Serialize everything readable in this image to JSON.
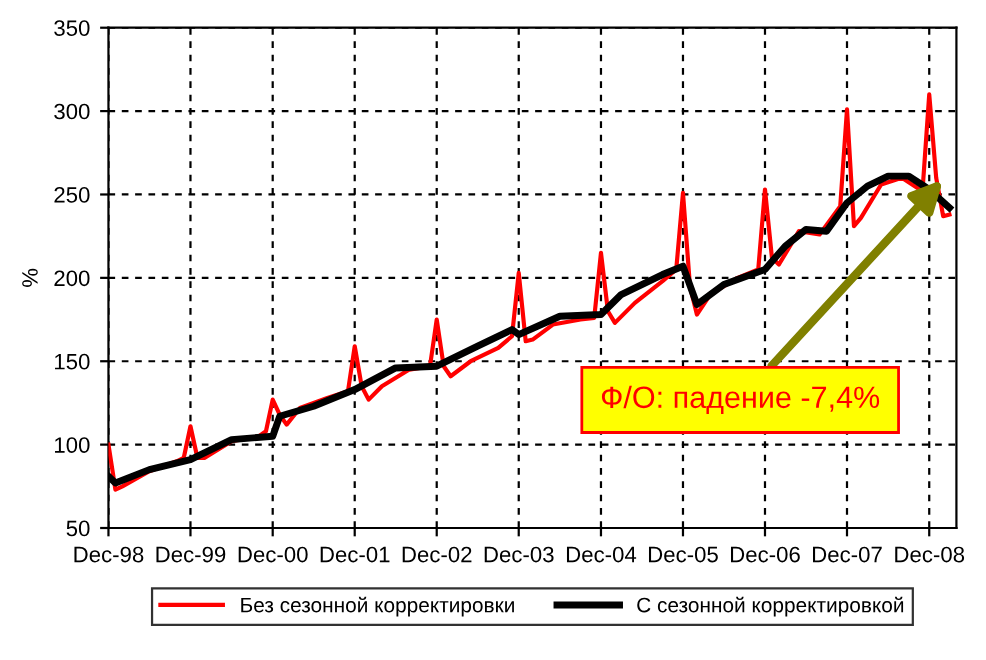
{
  "chart_data": {
    "type": "line",
    "xlim": [
      "1998-12",
      "2009-04"
    ],
    "ylim": [
      50,
      350
    ],
    "xticks": [
      {
        "value": "1998-12",
        "label": "Dec-98"
      },
      {
        "value": "1999-12",
        "label": "Dec-99"
      },
      {
        "value": "2000-12",
        "label": "Dec-00"
      },
      {
        "value": "2001-12",
        "label": "Dec-01"
      },
      {
        "value": "2002-12",
        "label": "Dec-02"
      },
      {
        "value": "2003-12",
        "label": "Dec-03"
      },
      {
        "value": "2004-12",
        "label": "Dec-04"
      },
      {
        "value": "2005-12",
        "label": "Dec-05"
      },
      {
        "value": "2006-12",
        "label": "Dec-06"
      },
      {
        "value": "2007-12",
        "label": "Dec-07"
      },
      {
        "value": "2008-12",
        "label": "Dec-08"
      }
    ],
    "yticks": [
      50,
      100,
      150,
      200,
      250,
      300,
      350
    ],
    "ylabel": "%",
    "grid": true,
    "legend": "bottom",
    "line_style": "solid",
    "marker": "none",
    "series": [
      {
        "name": "Без сезонной корректировки",
        "color": "#ff0000",
        "x": [
          "1998-12",
          "1999-01",
          "1999-02",
          "1999-06",
          "1999-10",
          "1999-11",
          "1999-12",
          "2000-01",
          "2000-02",
          "2000-06",
          "2000-10",
          "2000-11",
          "2000-12",
          "2001-01",
          "2001-02",
          "2001-04",
          "2001-08",
          "2001-11",
          "2001-12",
          "2002-01",
          "2002-02",
          "2002-04",
          "2002-08",
          "2002-11",
          "2002-12",
          "2003-01",
          "2003-02",
          "2003-05",
          "2003-09",
          "2003-11",
          "2003-12",
          "2004-01",
          "2004-02",
          "2004-05",
          "2004-09",
          "2004-11",
          "2004-12",
          "2005-01",
          "2005-02",
          "2005-05",
          "2005-09",
          "2005-11",
          "2005-12",
          "2006-01",
          "2006-02",
          "2006-04",
          "2006-08",
          "2006-11",
          "2006-12",
          "2007-01",
          "2007-02",
          "2007-05",
          "2007-08",
          "2007-11",
          "2007-12",
          "2008-01",
          "2008-02",
          "2008-05",
          "2008-08",
          "2008-11",
          "2008-12",
          "2009-01",
          "2009-02",
          "2009-03"
        ],
        "values": [
          100,
          73,
          75,
          84,
          90,
          92,
          111,
          92,
          92,
          102,
          105,
          108,
          127,
          118,
          112,
          122,
          128,
          132,
          159,
          135,
          127,
          135,
          145,
          147,
          175,
          147,
          141,
          150,
          158,
          165,
          203,
          162,
          163,
          172,
          175,
          176,
          215,
          180,
          173,
          185,
          198,
          205,
          251,
          195,
          178,
          190,
          200,
          205,
          253,
          212,
          208,
          228,
          226,
          243,
          301,
          231,
          236,
          256,
          260,
          252,
          310,
          260,
          237,
          238
        ]
      },
      {
        "name": "С сезонной корректировкой",
        "color": "#000000",
        "x": [
          "1998-12",
          "1999-01",
          "1999-06",
          "1999-12",
          "2000-06",
          "2000-12",
          "2001-01",
          "2001-06",
          "2001-12",
          "2002-06",
          "2002-12",
          "2003-06",
          "2003-11",
          "2003-12",
          "2004-06",
          "2004-12",
          "2005-03",
          "2005-09",
          "2005-12",
          "2006-02",
          "2006-06",
          "2006-12",
          "2007-03",
          "2007-06",
          "2007-09",
          "2007-12",
          "2008-03",
          "2008-06",
          "2008-09",
          "2008-12",
          "2009-03"
        ],
        "values": [
          81,
          77,
          85,
          91,
          103,
          105,
          117,
          123,
          133,
          146,
          147,
          159,
          169,
          166,
          177,
          178,
          190,
          202,
          207,
          184,
          196,
          205,
          219,
          229,
          228,
          245,
          255,
          261,
          261,
          253,
          242
        ]
      }
    ],
    "annotations": [
      {
        "text": "Ф/О: падение -7,4%",
        "x": "2009-02",
        "y": 259
      }
    ]
  }
}
